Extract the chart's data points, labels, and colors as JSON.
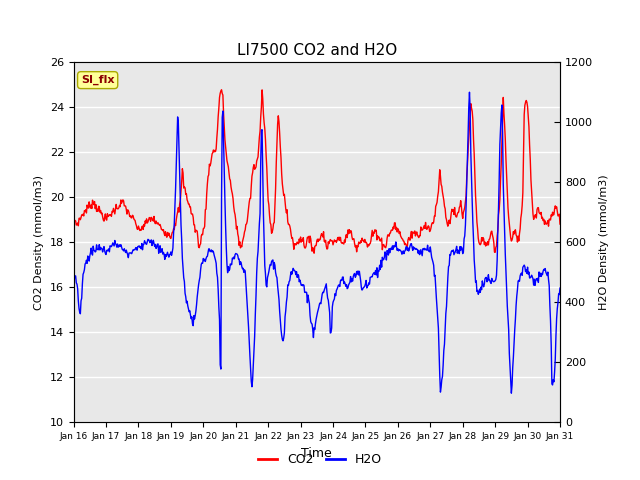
{
  "title": "LI7500 CO2 and H2O",
  "xlabel": "Time",
  "ylabel_left": "CO2 Density (mmol/m3)",
  "ylabel_right": "H2O Density (mmol/m3)",
  "ylim_left": [
    10,
    26
  ],
  "ylim_right": [
    0,
    1200
  ],
  "yticks_left": [
    10,
    12,
    14,
    16,
    18,
    20,
    22,
    24,
    26
  ],
  "yticks_right": [
    0,
    200,
    400,
    600,
    800,
    1000,
    1200
  ],
  "xtick_labels": [
    "Jan 16",
    "Jan 17",
    "Jan 18",
    "Jan 19",
    "Jan 20",
    "Jan 21",
    "Jan 22",
    "Jan 23",
    "Jan 24",
    "Jan 25",
    "Jan 26",
    "Jan 27",
    "Jan 28",
    "Jan 29",
    "Jan 30",
    "Jan 31"
  ],
  "co2_color": "#FF0000",
  "h2o_color": "#0000FF",
  "legend_label_co2": "CO2",
  "legend_label_h2o": "H2O",
  "annotation_text": "SI_flx",
  "annotation_box_color": "#FFFF99",
  "annotation_box_edge": "#AAAA00",
  "plot_bg_color": "#E8E8E8",
  "grid_color": "#FFFFFF",
  "line_width": 1.0
}
